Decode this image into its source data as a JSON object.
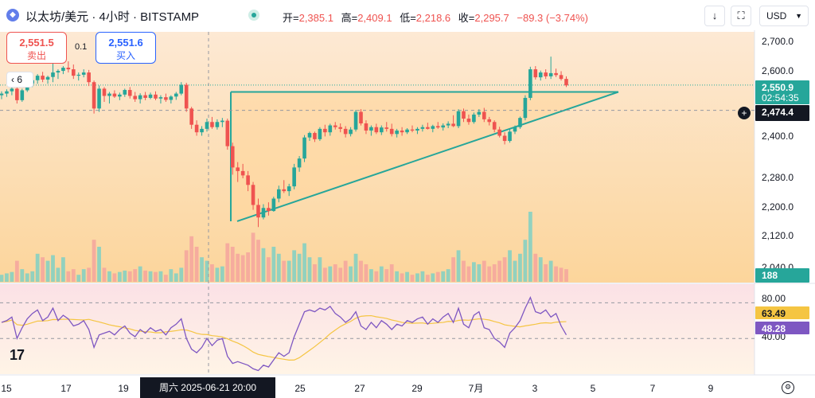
{
  "header": {
    "symbol": "以太坊/美元 · 4小时 · BITSTAMP",
    "open_label": "开=",
    "open": "2,385.1",
    "high_label": "高=",
    "high": "2,409.1",
    "low_label": "低=",
    "low": "2,218.6",
    "close_label": "收=",
    "close": "2,295.7",
    "change": "−89.3 (−3.74%)",
    "currency": "USD"
  },
  "trade": {
    "sell_price": "2,551.5",
    "sell_label": "卖出",
    "buy_price": "2,551.6",
    "buy_label": "买入",
    "spread": "0.1"
  },
  "indicator_count": "6",
  "axis_labels": {
    "price_ticks": [
      "2,700.0",
      "2,600.0",
      "2,400.0",
      "2,280.0",
      "2,200.0",
      "2,120.0",
      "2,040.0"
    ],
    "rsi_ticks": [
      "80.00",
      "40.00"
    ],
    "x_ticks": [
      "15",
      "17",
      "19",
      "25",
      "27",
      "29",
      "7月",
      "3",
      "5",
      "7",
      "9"
    ],
    "date_tooltip": "周六 2025-06-21  20:00"
  },
  "badges": {
    "last_price": "2,550.9",
    "countdown": "02:54:35",
    "cursor_price": "2,474.4",
    "volume": "188",
    "rsi": "63.49",
    "rsi_ma": "48.28"
  },
  "chart_data": {
    "type": "candlestick",
    "price_scale": "log",
    "ylim": [
      2040,
      2720
    ],
    "current_price": 2550.9,
    "cursor_price": 2474.4,
    "candles_ohlc": [
      [
        2520,
        2532,
        2508,
        2525
      ],
      [
        2525,
        2538,
        2515,
        2532
      ],
      [
        2532,
        2545,
        2520,
        2540
      ],
      [
        2540,
        2548,
        2495,
        2505
      ],
      [
        2505,
        2540,
        2500,
        2535
      ],
      [
        2535,
        2560,
        2530,
        2555
      ],
      [
        2555,
        2572,
        2545,
        2566
      ],
      [
        2566,
        2585,
        2555,
        2580
      ],
      [
        2580,
        2592,
        2560,
        2568
      ],
      [
        2568,
        2580,
        2555,
        2576
      ],
      [
        2576,
        2628,
        2560,
        2590
      ],
      [
        2590,
        2600,
        2570,
        2595
      ],
      [
        2595,
        2610,
        2585,
        2605
      ],
      [
        2605,
        2625,
        2590,
        2600
      ],
      [
        2600,
        2615,
        2570,
        2580
      ],
      [
        2580,
        2590,
        2565,
        2583
      ],
      [
        2583,
        2600,
        2575,
        2590
      ],
      [
        2590,
        2598,
        2548,
        2560
      ],
      [
        2560,
        2565,
        2465,
        2480
      ],
      [
        2480,
        2550,
        2470,
        2540
      ],
      [
        2540,
        2545,
        2500,
        2518
      ],
      [
        2518,
        2530,
        2495,
        2525
      ],
      [
        2525,
        2535,
        2512,
        2516
      ],
      [
        2516,
        2528,
        2505,
        2522
      ],
      [
        2522,
        2540,
        2515,
        2536
      ],
      [
        2536,
        2545,
        2510,
        2518
      ],
      [
        2518,
        2530,
        2500,
        2508
      ],
      [
        2508,
        2526,
        2495,
        2520
      ],
      [
        2520,
        2530,
        2505,
        2512
      ],
      [
        2512,
        2528,
        2508,
        2522
      ],
      [
        2522,
        2532,
        2505,
        2510
      ],
      [
        2510,
        2520,
        2495,
        2514
      ],
      [
        2514,
        2525,
        2500,
        2506
      ],
      [
        2506,
        2520,
        2495,
        2516
      ],
      [
        2516,
        2530,
        2506,
        2525
      ],
      [
        2525,
        2560,
        2520,
        2552
      ],
      [
        2552,
        2558,
        2470,
        2480
      ],
      [
        2480,
        2485,
        2420,
        2432
      ],
      [
        2432,
        2445,
        2400,
        2410
      ],
      [
        2410,
        2428,
        2400,
        2420
      ],
      [
        2420,
        2450,
        2412,
        2440
      ],
      [
        2440,
        2455,
        2420,
        2425
      ],
      [
        2425,
        2448,
        2418,
        2440
      ],
      [
        2440,
        2452,
        2425,
        2444
      ],
      [
        2444,
        2450,
        2360,
        2370
      ],
      [
        2370,
        2380,
        2290,
        2310
      ],
      [
        2310,
        2325,
        2270,
        2300
      ],
      [
        2300,
        2320,
        2280,
        2288
      ],
      [
        2288,
        2300,
        2245,
        2262
      ],
      [
        2262,
        2270,
        2195,
        2208
      ],
      [
        2208,
        2225,
        2150,
        2175
      ],
      [
        2175,
        2210,
        2170,
        2200
      ],
      [
        2200,
        2215,
        2180,
        2192
      ],
      [
        2192,
        2230,
        2190,
        2225
      ],
      [
        2225,
        2260,
        2215,
        2250
      ],
      [
        2250,
        2275,
        2240,
        2245
      ],
      [
        2245,
        2265,
        2232,
        2258
      ],
      [
        2258,
        2320,
        2250,
        2310
      ],
      [
        2310,
        2342,
        2298,
        2335
      ],
      [
        2335,
        2402,
        2325,
        2395
      ],
      [
        2395,
        2412,
        2385,
        2408
      ],
      [
        2408,
        2412,
        2382,
        2390
      ],
      [
        2390,
        2425,
        2385,
        2420
      ],
      [
        2420,
        2432,
        2398,
        2410
      ],
      [
        2410,
        2435,
        2400,
        2430
      ],
      [
        2430,
        2440,
        2418,
        2425
      ],
      [
        2425,
        2436,
        2410,
        2420
      ],
      [
        2420,
        2428,
        2395,
        2405
      ],
      [
        2405,
        2425,
        2398,
        2418
      ],
      [
        2418,
        2476,
        2412,
        2470
      ],
      [
        2470,
        2478,
        2430,
        2436
      ],
      [
        2436,
        2445,
        2405,
        2415
      ],
      [
        2415,
        2430,
        2400,
        2425
      ],
      [
        2425,
        2435,
        2405,
        2410
      ],
      [
        2410,
        2430,
        2402,
        2424
      ],
      [
        2424,
        2440,
        2412,
        2420
      ],
      [
        2420,
        2435,
        2398,
        2405
      ],
      [
        2405,
        2420,
        2395,
        2415
      ],
      [
        2415,
        2425,
        2400,
        2410
      ],
      [
        2410,
        2422,
        2405,
        2418
      ],
      [
        2418,
        2430,
        2410,
        2415
      ],
      [
        2415,
        2425,
        2405,
        2420
      ],
      [
        2420,
        2432,
        2412,
        2425
      ],
      [
        2425,
        2438,
        2418,
        2420
      ],
      [
        2420,
        2432,
        2410,
        2428
      ],
      [
        2428,
        2440,
        2420,
        2424
      ],
      [
        2424,
        2436,
        2415,
        2430
      ],
      [
        2430,
        2442,
        2422,
        2435
      ],
      [
        2435,
        2460,
        2425,
        2428
      ],
      [
        2428,
        2478,
        2422,
        2472
      ],
      [
        2472,
        2480,
        2440,
        2450
      ],
      [
        2450,
        2462,
        2432,
        2440
      ],
      [
        2440,
        2468,
        2435,
        2462
      ],
      [
        2462,
        2478,
        2455,
        2470
      ],
      [
        2470,
        2482,
        2440,
        2448
      ],
      [
        2448,
        2455,
        2430,
        2440
      ],
      [
        2440,
        2445,
        2410,
        2418
      ],
      [
        2418,
        2426,
        2395,
        2400
      ],
      [
        2400,
        2410,
        2375,
        2385
      ],
      [
        2385,
        2420,
        2380,
        2412
      ],
      [
        2412,
        2430,
        2405,
        2425
      ],
      [
        2425,
        2456,
        2420,
        2452
      ],
      [
        2452,
        2520,
        2445,
        2512
      ],
      [
        2512,
        2608,
        2505,
        2600
      ],
      [
        2600,
        2610,
        2568,
        2575
      ],
      [
        2575,
        2596,
        2565,
        2590
      ],
      [
        2590,
        2600,
        2570,
        2578
      ],
      [
        2578,
        2640,
        2570,
        2588
      ],
      [
        2588,
        2602,
        2576,
        2582
      ],
      [
        2582,
        2594,
        2565,
        2570
      ],
      [
        2570,
        2578,
        2545,
        2550
      ]
    ],
    "volumes": [
      0.1,
      0.12,
      0.14,
      0.3,
      0.18,
      0.12,
      0.15,
      0.4,
      0.35,
      0.3,
      0.38,
      0.2,
      0.35,
      0.15,
      0.18,
      0.1,
      0.18,
      0.2,
      0.6,
      0.5,
      0.2,
      0.15,
      0.12,
      0.14,
      0.16,
      0.15,
      0.18,
      0.22,
      0.16,
      0.15,
      0.14,
      0.15,
      0.1,
      0.18,
      0.12,
      0.2,
      0.45,
      0.65,
      0.5,
      0.35,
      0.3,
      0.25,
      0.2,
      0.22,
      0.55,
      0.5,
      0.4,
      0.38,
      0.42,
      0.7,
      0.6,
      0.48,
      0.35,
      0.5,
      0.4,
      0.3,
      0.3,
      0.45,
      0.4,
      0.55,
      0.35,
      0.25,
      0.35,
      0.2,
      0.22,
      0.25,
      0.2,
      0.3,
      0.22,
      0.4,
      0.3,
      0.25,
      0.18,
      0.15,
      0.22,
      0.18,
      0.25,
      0.15,
      0.12,
      0.14,
      0.1,
      0.12,
      0.15,
      0.1,
      0.12,
      0.14,
      0.15,
      0.18,
      0.35,
      0.45,
      0.3,
      0.22,
      0.28,
      0.25,
      0.3,
      0.22,
      0.25,
      0.3,
      0.35,
      0.45,
      0.3,
      0.4,
      0.6,
      1.0,
      0.4,
      0.35,
      0.25,
      0.3,
      0.22,
      0.2,
      0.18
    ],
    "rsi": [
      58,
      60,
      64,
      40,
      52,
      62,
      68,
      72,
      60,
      64,
      74,
      60,
      66,
      62,
      54,
      56,
      60,
      50,
      30,
      44,
      46,
      48,
      44,
      50,
      54,
      46,
      42,
      50,
      46,
      52,
      48,
      50,
      44,
      52,
      56,
      62,
      40,
      28,
      24,
      30,
      40,
      32,
      38,
      40,
      20,
      12,
      14,
      12,
      10,
      6,
      4,
      10,
      8,
      16,
      24,
      20,
      24,
      42,
      56,
      70,
      72,
      70,
      74,
      72,
      76,
      68,
      64,
      58,
      62,
      70,
      54,
      50,
      58,
      52,
      60,
      56,
      50,
      56,
      54,
      60,
      58,
      62,
      64,
      56,
      62,
      58,
      64,
      68,
      58,
      74,
      56,
      52,
      66,
      70,
      52,
      50,
      40,
      36,
      30,
      46,
      52,
      60,
      74,
      86,
      70,
      68,
      72,
      64,
      68,
      54,
      44
    ],
    "rsi_ylim": [
      0,
      100
    ],
    "rsi_levels": [
      80,
      40
    ],
    "pattern": {
      "type": "ascending-triangle",
      "resistance_price": 2530,
      "apex_price": 2530,
      "lower_start_price": 2165
    }
  },
  "colors": {
    "up": "#26a69a",
    "down": "#ef5350",
    "rsi_line": "#7e57c2",
    "rsi_ma": "#f5c542",
    "pattern_line": "#26a69a",
    "background_gradient_top": "#fde9d4",
    "background_gradient_bottom": "#fcd59b"
  }
}
